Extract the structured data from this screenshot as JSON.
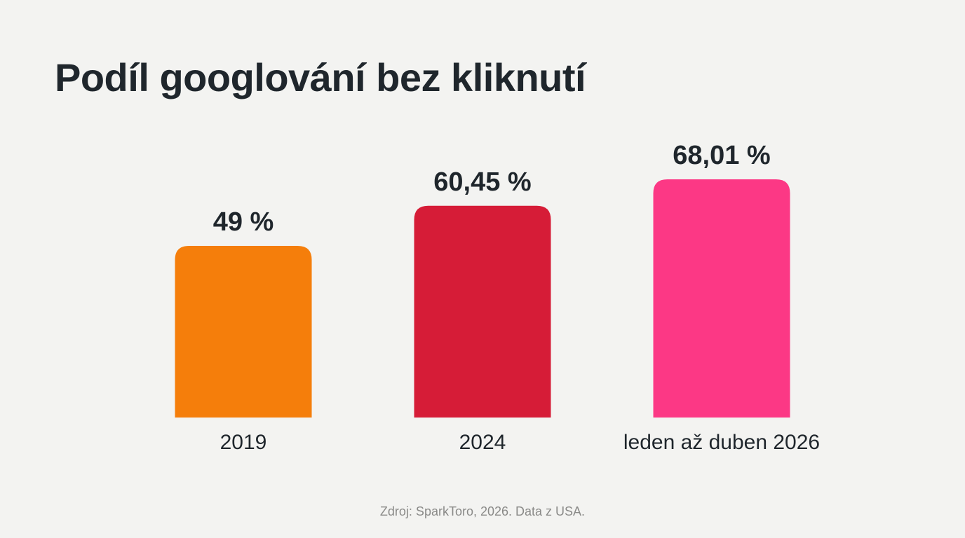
{
  "title": "Podíl googlování bez kliknutí",
  "source": "Zdroj: SparkToro, 2026. Data z USA.",
  "colors": {
    "background": "#f3f3f1",
    "text": "#1f262c",
    "muted_text": "#8a8a88"
  },
  "chart_data": {
    "type": "bar",
    "title": "Podíl googlování bez kliknutí",
    "xlabel": "",
    "ylabel": "",
    "grid": false,
    "categories": [
      "2019",
      "2024",
      "leden až duben 2026"
    ],
    "values": [
      49,
      60.45,
      68.01
    ],
    "value_labels": [
      "49 %",
      "60,45 %",
      "68,01 %"
    ],
    "bar_colors": [
      "#f57e0b",
      "#d61c37",
      "#fc3885"
    ]
  }
}
